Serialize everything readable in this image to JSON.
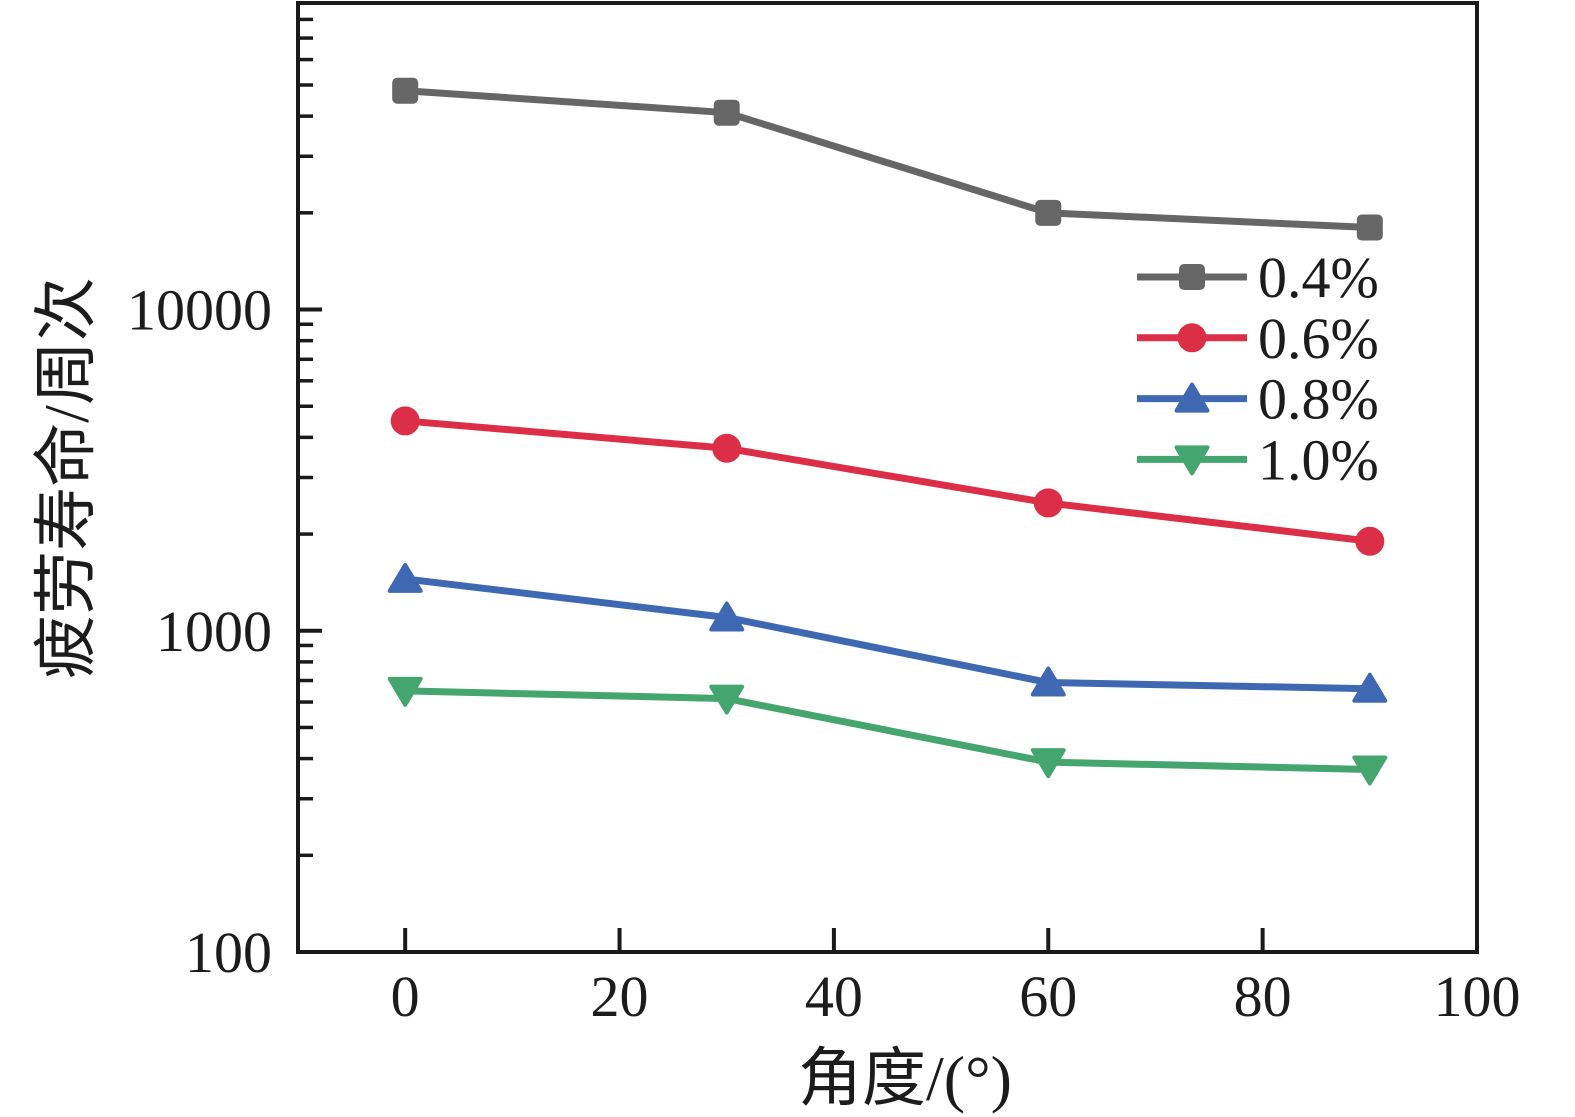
{
  "chart_data": {
    "type": "line",
    "title": "",
    "xlabel": "角度/(°)",
    "ylabel": "疲劳寿命/周次",
    "x_scale": "linear",
    "y_scale": "log",
    "xlim": [
      -10,
      100
    ],
    "ylim": [
      100,
      90000
    ],
    "x_ticks": [
      0,
      20,
      40,
      60,
      80,
      100
    ],
    "x_tick_labels": [
      "0",
      "20",
      "40",
      "60",
      "80",
      "100"
    ],
    "y_ticks": [
      100,
      1000,
      10000
    ],
    "y_tick_labels": [
      "100",
      "1000",
      "10000"
    ],
    "grid": false,
    "frame": "box",
    "legend_position": "upper-right-inside",
    "x": [
      0,
      30,
      60,
      90
    ],
    "series": [
      {
        "name": "0.4%",
        "color": "#666666",
        "marker": "square",
        "values": [
          48000,
          41000,
          20000,
          18000
        ]
      },
      {
        "name": "0.6%",
        "color": "#dc2e46",
        "marker": "circle",
        "values": [
          4500,
          3700,
          2500,
          1900
        ]
      },
      {
        "name": "0.8%",
        "color": "#3f68b2",
        "marker": "triangle-up",
        "values": [
          1450,
          1100,
          690,
          660
        ]
      },
      {
        "name": "1.0%",
        "color": "#45a56e",
        "marker": "triangle-down",
        "values": [
          650,
          615,
          390,
          370
        ]
      }
    ]
  }
}
